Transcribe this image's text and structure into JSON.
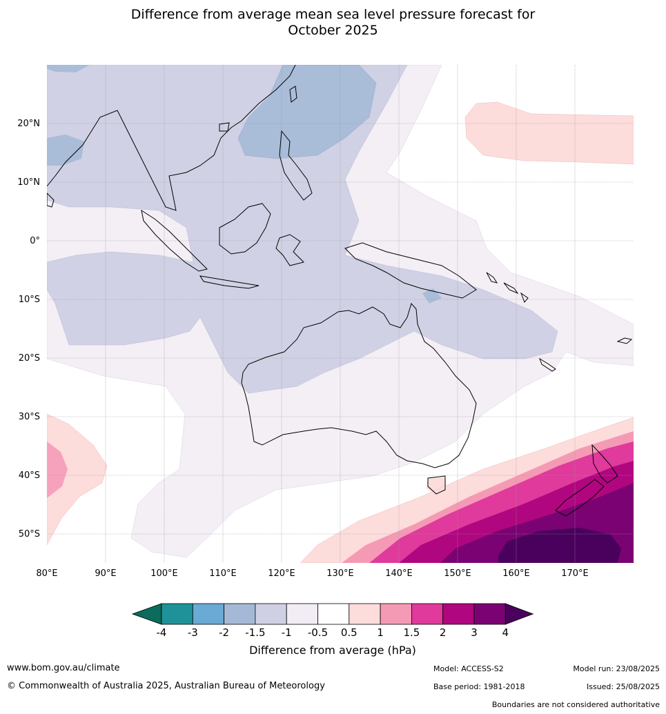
{
  "title_line1": "Difference from average mean sea level pressure forecast for",
  "title_line2": "October 2025",
  "lat_labels": [
    "20°N",
    "10°N",
    "0°",
    "10°S",
    "20°S",
    "30°S",
    "40°S",
    "50°S"
  ],
  "lon_labels": [
    "80°E",
    "90°E",
    "100°E",
    "110°E",
    "120°E",
    "130°E",
    "140°E",
    "150°E",
    "160°E",
    "170°E"
  ],
  "colorbar": {
    "ticks": [
      "-4",
      "-3",
      "-2",
      "-1.5",
      "-1",
      "-0.5",
      "0.5",
      "1",
      "1.5",
      "2",
      "3",
      "4"
    ],
    "colors": [
      "#0b6b5d",
      "#1f9199",
      "#6aaad4",
      "#a5b8d6",
      "#d0d0e4",
      "#f2ecf4",
      "#ffffff",
      "#fddcdc",
      "#f59ab5",
      "#df3a9c",
      "#b0067f",
      "#7a0272",
      "#4a015e"
    ],
    "label": "Difference from average (hPa)"
  },
  "footer": {
    "website": "www.bom.gov.au/climate",
    "copyright": "© Commonwealth of Australia 2025, Australian Bureau of Meteorology",
    "model": "Model: ACCESS-S2",
    "base_period": "Base period: 1981-2018",
    "model_run": "Model run: 23/08/2025",
    "issued": "Issued: 25/08/2025",
    "disclaimer": "Boundaries are not considered authoritative"
  }
}
